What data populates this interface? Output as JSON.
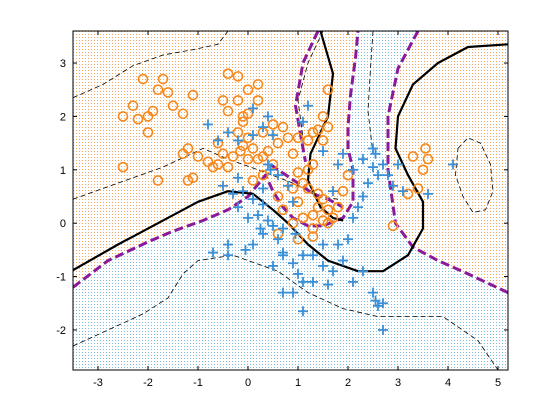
{
  "chart_data": {
    "type": "scatter",
    "xlim": [
      -3.5,
      5.2
    ],
    "ylim": [
      -2.75,
      3.6
    ],
    "x_ticks": [
      -3,
      -2,
      -1,
      0,
      1,
      2,
      3,
      4,
      5
    ],
    "y_ticks": [
      -2,
      -1,
      0,
      1,
      2,
      3
    ],
    "x_tick_labels": [
      "-3",
      "-2",
      "-1",
      "0",
      "1",
      "2",
      "3",
      "4",
      "5"
    ],
    "y_tick_labels": [
      "-2",
      "-1",
      "0",
      "1",
      "2",
      "3"
    ],
    "grid": false,
    "colors": {
      "class_circle": "#f5891f",
      "class_plus": "#3b8fd6",
      "region_circle": "#fbe2c4",
      "region_plus": "#cfe6f3",
      "true_boundary": "#8b1a9a",
      "fitted_boundary": "#000000"
    },
    "series": [
      {
        "marker": "circle",
        "points": [
          [
            -2.5,
            2.0
          ],
          [
            -2.3,
            2.2
          ],
          [
            -2.2,
            1.95
          ],
          [
            -2.1,
            2.7
          ],
          [
            -2.0,
            2.0
          ],
          [
            -1.9,
            2.1
          ],
          [
            -1.8,
            2.5
          ],
          [
            -1.7,
            2.7
          ],
          [
            -1.6,
            2.45
          ],
          [
            -1.5,
            2.2
          ],
          [
            -1.3,
            2.05
          ],
          [
            -1.1,
            2.4
          ],
          [
            -2.0,
            1.7
          ],
          [
            -2.5,
            1.05
          ],
          [
            -1.8,
            0.8
          ],
          [
            -1.3,
            1.3
          ],
          [
            -1.2,
            1.4
          ],
          [
            -1.0,
            1.25
          ],
          [
            -1.2,
            0.8
          ],
          [
            -0.8,
            1.15
          ],
          [
            -0.6,
            1.1
          ],
          [
            -0.4,
            1.05
          ],
          [
            -0.5,
            1.3
          ],
          [
            -0.3,
            1.25
          ],
          [
            -0.15,
            1.35
          ],
          [
            0.0,
            1.2
          ],
          [
            -0.1,
            1.45
          ],
          [
            0.1,
            1.4
          ],
          [
            0.2,
            1.2
          ],
          [
            0.3,
            1.25
          ],
          [
            0.4,
            1.35
          ],
          [
            -0.5,
            2.3
          ],
          [
            -0.2,
            2.3
          ],
          [
            -0.4,
            2.8
          ],
          [
            -0.2,
            2.75
          ],
          [
            0.0,
            2.5
          ],
          [
            0.2,
            2.6
          ],
          [
            -0.4,
            2.1
          ],
          [
            0.0,
            2.05
          ],
          [
            -0.1,
            2.0
          ],
          [
            0.2,
            2.3
          ],
          [
            -0.1,
            1.9
          ],
          [
            0.6,
            1.5
          ],
          [
            0.8,
            1.6
          ],
          [
            0.7,
            1.8
          ],
          [
            0.5,
            1.85
          ],
          [
            0.3,
            1.7
          ],
          [
            0.0,
            1.6
          ],
          [
            -0.2,
            1.7
          ],
          [
            0.9,
            1.3
          ],
          [
            1.0,
            1.6
          ],
          [
            1.2,
            1.55
          ],
          [
            1.3,
            1.7
          ],
          [
            1.4,
            1.75
          ],
          [
            1.5,
            1.55
          ],
          [
            1.6,
            1.8
          ],
          [
            1.5,
            2.0
          ],
          [
            1.6,
            2.5
          ],
          [
            1.3,
            1.1
          ],
          [
            1.2,
            1.0
          ],
          [
            1.0,
            0.95
          ],
          [
            1.1,
            0.75
          ],
          [
            1.2,
            0.65
          ],
          [
            1.4,
            0.55
          ],
          [
            1.5,
            0.45
          ],
          [
            1.4,
            0.3
          ],
          [
            1.6,
            0.25
          ],
          [
            1.3,
            0.15
          ],
          [
            1.5,
            0.05
          ],
          [
            1.0,
            0.4
          ],
          [
            1.1,
            0.1
          ],
          [
            1.3,
            -0.1
          ],
          [
            1.6,
            0.0
          ],
          [
            1.7,
            0.1
          ],
          [
            1.8,
            0.3
          ],
          [
            0.6,
            0.5
          ],
          [
            0.7,
            0.25
          ],
          [
            0.9,
            0.0
          ],
          [
            0.6,
            -0.2
          ],
          [
            1.0,
            -0.3
          ],
          [
            1.3,
            -0.25
          ],
          [
            1.9,
            0.6
          ],
          [
            2.0,
            0.9
          ],
          [
            2.9,
            -0.05
          ],
          [
            3.2,
            0.55
          ],
          [
            3.4,
            0.65
          ],
          [
            3.5,
            1.0
          ],
          [
            3.6,
            1.2
          ],
          [
            3.55,
            1.4
          ],
          [
            3.3,
            1.25
          ],
          [
            0.1,
            0.8
          ],
          [
            0.3,
            0.9
          ],
          [
            0.9,
            0.65
          ],
          [
            -1.1,
            0.85
          ],
          [
            -0.7,
            1.05
          ],
          [
            -0.6,
            1.5
          ],
          [
            0.5,
            1.1
          ]
        ]
      },
      {
        "marker": "plus",
        "points": [
          [
            -0.8,
            1.85
          ],
          [
            -0.6,
            1.55
          ],
          [
            -0.4,
            1.7
          ],
          [
            -0.2,
            1.55
          ],
          [
            0.1,
            1.65
          ],
          [
            0.3,
            1.8
          ],
          [
            0.5,
            1.65
          ],
          [
            0.1,
            2.15
          ],
          [
            0.4,
            2.0
          ],
          [
            -0.2,
            0.85
          ],
          [
            -0.3,
            0.55
          ],
          [
            -0.1,
            0.6
          ],
          [
            0.1,
            0.45
          ],
          [
            0.3,
            0.35
          ],
          [
            0.2,
            0.15
          ],
          [
            0.4,
            0.05
          ],
          [
            0.5,
            -0.05
          ],
          [
            0.3,
            -0.2
          ],
          [
            0.6,
            -0.3
          ],
          [
            0.7,
            -0.55
          ],
          [
            0.5,
            -0.8
          ],
          [
            0.9,
            -0.75
          ],
          [
            1.0,
            -0.95
          ],
          [
            1.1,
            -1.1
          ],
          [
            1.3,
            -1.1
          ],
          [
            0.9,
            -1.3
          ],
          [
            0.7,
            -1.3
          ],
          [
            1.3,
            -0.6
          ],
          [
            1.5,
            -0.4
          ],
          [
            1.5,
            -0.8
          ],
          [
            1.7,
            -0.9
          ],
          [
            2.0,
            -0.3
          ],
          [
            2.1,
            0.1
          ],
          [
            2.2,
            0.3
          ],
          [
            2.3,
            0.5
          ],
          [
            2.4,
            0.75
          ],
          [
            2.5,
            1.05
          ],
          [
            2.55,
            1.3
          ],
          [
            2.5,
            1.4
          ],
          [
            2.3,
            1.2
          ],
          [
            2.1,
            1.0
          ],
          [
            2.6,
            0.9
          ],
          [
            2.7,
            1.1
          ],
          [
            2.8,
            0.9
          ],
          [
            2.9,
            0.7
          ],
          [
            3.1,
            0.6
          ],
          [
            3.6,
            0.55
          ],
          [
            4.1,
            1.1
          ],
          [
            3.0,
            1.1
          ],
          [
            1.9,
            1.3
          ],
          [
            1.8,
            1.1
          ],
          [
            1.5,
            1.35
          ],
          [
            1.1,
            1.9
          ],
          [
            1.2,
            2.2
          ],
          [
            -0.2,
            0.3
          ],
          [
            0.0,
            0.1
          ],
          [
            -0.4,
            -0.4
          ],
          [
            -0.7,
            -0.55
          ],
          [
            -0.4,
            -0.6
          ],
          [
            -0.05,
            -0.5
          ],
          [
            0.1,
            -0.4
          ],
          [
            0.25,
            -0.1
          ],
          [
            0.7,
            -0.1
          ],
          [
            1.1,
            -0.6
          ],
          [
            0.95,
            -0.2
          ],
          [
            2.1,
            -1.1
          ],
          [
            2.5,
            -1.3
          ],
          [
            2.55,
            -1.45
          ],
          [
            2.7,
            -1.5
          ],
          [
            2.6,
            -1.55
          ],
          [
            2.7,
            -2.0
          ],
          [
            1.1,
            -1.65
          ],
          [
            1.6,
            -1.15
          ],
          [
            2.3,
            -0.9
          ],
          [
            1.8,
            -0.4
          ],
          [
            1.9,
            -0.7
          ],
          [
            0.8,
            0.7
          ],
          [
            0.9,
            0.4
          ],
          [
            0.6,
            0.9
          ],
          [
            0.45,
            1.0
          ],
          [
            0.3,
            0.65
          ],
          [
            0.4,
            1.1
          ],
          [
            -0.5,
            0.7
          ],
          [
            0.7,
            -0.6
          ],
          [
            1.7,
            0.6
          ]
        ]
      }
    ],
    "true_boundary": [
      [
        [
          -3.5,
          -1.2
        ],
        [
          -2.8,
          -0.7
        ],
        [
          -2.0,
          -0.35
        ],
        [
          -1.5,
          -0.15
        ],
        [
          -0.9,
          0.05
        ],
        [
          -0.4,
          0.25
        ],
        [
          0.0,
          0.5
        ],
        [
          0.35,
          0.9
        ],
        [
          0.5,
          0.6
        ],
        [
          0.7,
          0.3
        ],
        [
          0.9,
          0.1
        ],
        [
          1.2,
          -0.05
        ],
        [
          1.5,
          -0.05
        ],
        [
          1.9,
          0.1
        ],
        [
          2.1,
          0.4
        ],
        [
          2.1,
          1.0
        ],
        [
          2.0,
          1.4
        ],
        [
          2.0,
          1.8
        ],
        [
          2.05,
          2.4
        ],
        [
          2.15,
          3.1
        ],
        [
          2.2,
          3.6
        ]
      ],
      [
        [
          3.4,
          3.6
        ],
        [
          3.0,
          2.9
        ],
        [
          2.8,
          2.0
        ],
        [
          2.8,
          1.0
        ],
        [
          2.95,
          0.0
        ],
        [
          3.3,
          -0.45
        ],
        [
          3.8,
          -0.7
        ],
        [
          4.4,
          -0.95
        ],
        [
          5.2,
          -1.3
        ]
      ],
      [
        [
          1.4,
          3.6
        ],
        [
          1.1,
          3.0
        ],
        [
          0.95,
          2.2
        ],
        [
          1.1,
          1.4
        ],
        [
          1.15,
          1.15
        ]
      ],
      [
        [
          0.45,
          1.1
        ],
        [
          0.6,
          1.0
        ],
        [
          1.0,
          0.75
        ],
        [
          1.3,
          0.55
        ],
        [
          1.6,
          0.45
        ],
        [
          1.9,
          0.3
        ]
      ]
    ],
    "fitted_boundary": [
      [
        [
          -3.5,
          -0.88
        ],
        [
          -2.6,
          -0.4
        ],
        [
          -1.8,
          0.0
        ],
        [
          -1.0,
          0.4
        ],
        [
          -0.4,
          0.6
        ],
        [
          0.1,
          0.55
        ],
        [
          0.5,
          0.25
        ],
        [
          0.8,
          0.0
        ],
        [
          1.2,
          -0.4
        ],
        [
          1.6,
          -0.7
        ],
        [
          2.2,
          -0.9
        ],
        [
          2.7,
          -0.9
        ],
        [
          3.2,
          -0.6
        ],
        [
          3.5,
          -0.1
        ],
        [
          3.5,
          0.4
        ],
        [
          3.2,
          0.9
        ],
        [
          2.95,
          1.4
        ],
        [
          3.0,
          2.0
        ],
        [
          3.3,
          2.6
        ],
        [
          3.8,
          3.0
        ],
        [
          4.4,
          3.3
        ],
        [
          5.2,
          3.35
        ]
      ],
      [
        [
          1.9,
          0.05
        ],
        [
          1.7,
          0.1
        ],
        [
          1.45,
          0.3
        ],
        [
          1.2,
          0.8
        ],
        [
          1.25,
          1.3
        ],
        [
          1.6,
          2.0
        ],
        [
          1.7,
          2.8
        ],
        [
          1.45,
          3.6
        ]
      ]
    ],
    "dashed_contours": [
      [
        [
          -3.5,
          2.35
        ],
        [
          -2.9,
          2.6
        ],
        [
          -2.3,
          2.95
        ],
        [
          -1.7,
          3.15
        ],
        [
          -1.1,
          3.25
        ],
        [
          -0.6,
          3.35
        ],
        [
          -0.4,
          3.6
        ]
      ],
      [
        [
          -3.5,
          0.45
        ],
        [
          -2.6,
          0.75
        ],
        [
          -1.7,
          1.05
        ],
        [
          -0.9,
          1.4
        ],
        [
          -0.4,
          1.2
        ],
        [
          0.2,
          1.0
        ],
        [
          0.9,
          0.75
        ],
        [
          1.4,
          0.5
        ],
        [
          1.8,
          0.45
        ]
      ],
      [
        [
          -3.5,
          -2.3
        ],
        [
          -2.8,
          -2.0
        ],
        [
          -2.1,
          -1.7
        ],
        [
          -1.6,
          -1.4
        ],
        [
          -1.3,
          -0.95
        ],
        [
          -1.0,
          -0.7
        ],
        [
          -0.3,
          -0.6
        ],
        [
          0.6,
          -0.9
        ],
        [
          1.2,
          -1.3
        ],
        [
          1.9,
          -1.6
        ],
        [
          2.6,
          -1.75
        ],
        [
          3.3,
          -1.75
        ],
        [
          3.9,
          -1.75
        ],
        [
          4.6,
          -2.2
        ],
        [
          5.0,
          -2.75
        ]
      ],
      [
        [
          1.5,
          3.6
        ],
        [
          1.2,
          3.0
        ],
        [
          1.0,
          2.3
        ],
        [
          1.1,
          1.6
        ],
        [
          1.1,
          1.3
        ]
      ],
      [
        [
          2.5,
          3.6
        ],
        [
          2.45,
          2.9
        ],
        [
          2.4,
          2.1
        ],
        [
          2.5,
          1.3
        ]
      ],
      [
        [
          4.2,
          1.4
        ],
        [
          4.4,
          1.6
        ],
        [
          4.65,
          1.5
        ],
        [
          4.85,
          1.1
        ],
        [
          4.9,
          0.6
        ],
        [
          4.75,
          0.25
        ],
        [
          4.5,
          0.2
        ],
        [
          4.3,
          0.5
        ],
        [
          4.15,
          0.9
        ],
        [
          4.2,
          1.4
        ]
      ]
    ]
  }
}
